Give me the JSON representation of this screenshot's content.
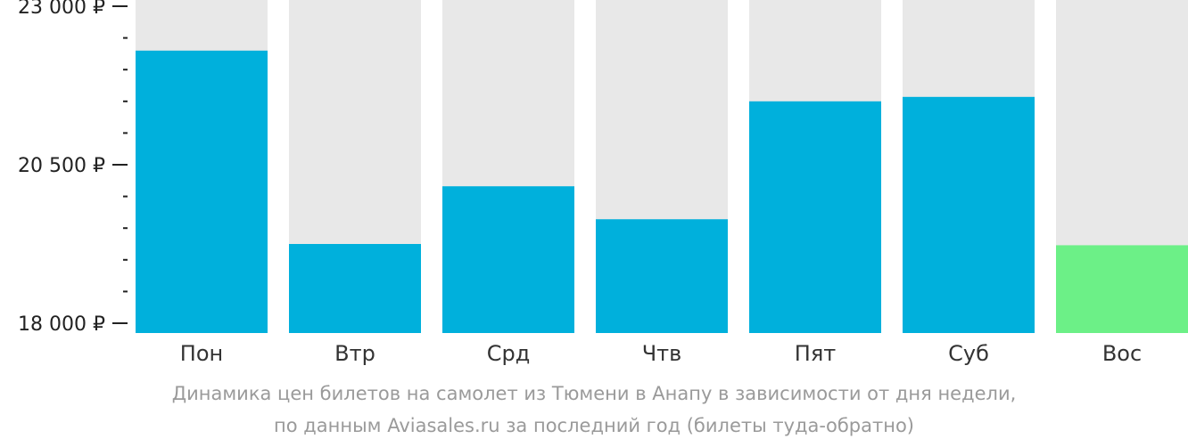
{
  "chart_data": {
    "type": "bar",
    "categories": [
      "Пон",
      "Втр",
      "Срд",
      "Чтв",
      "Пят",
      "Суб",
      "Вос"
    ],
    "values": [
      22300,
      19250,
      20160,
      19640,
      21500,
      21570,
      19230
    ],
    "ylim": [
      18000,
      23000
    ],
    "yticks": [
      {
        "value": 18000,
        "label": "18 000 ₽"
      },
      {
        "value": 20500,
        "label": "20 500 ₽"
      },
      {
        "value": 23000,
        "label": "23 000 ₽"
      }
    ],
    "minor_ticks": [
      18500,
      19000,
      19500,
      20000,
      21000,
      21500,
      22000,
      22500
    ],
    "highlight_index": 6,
    "colors": {
      "bar": "#00b0dc",
      "highlight": "#6cf087",
      "track": "#e8e8e8",
      "axis": "#222222"
    }
  },
  "caption": {
    "line1": "Динамика цен билетов на самолет из Тюмени в Анапу в зависимости от дня недели,",
    "line2": "по данным Aviasales.ru за последний год (билеты туда-обратно)"
  }
}
